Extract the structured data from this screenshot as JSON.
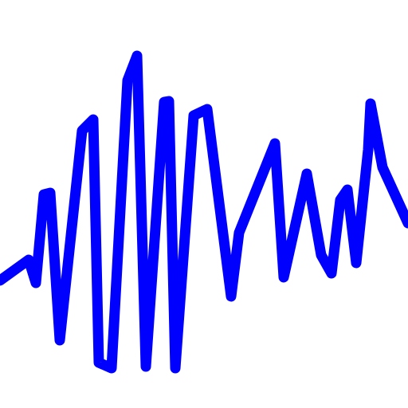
{
  "icon": {
    "name": "sound-wave-icon",
    "stroke_color": "#0000ff",
    "background_color": "#ffffff"
  }
}
